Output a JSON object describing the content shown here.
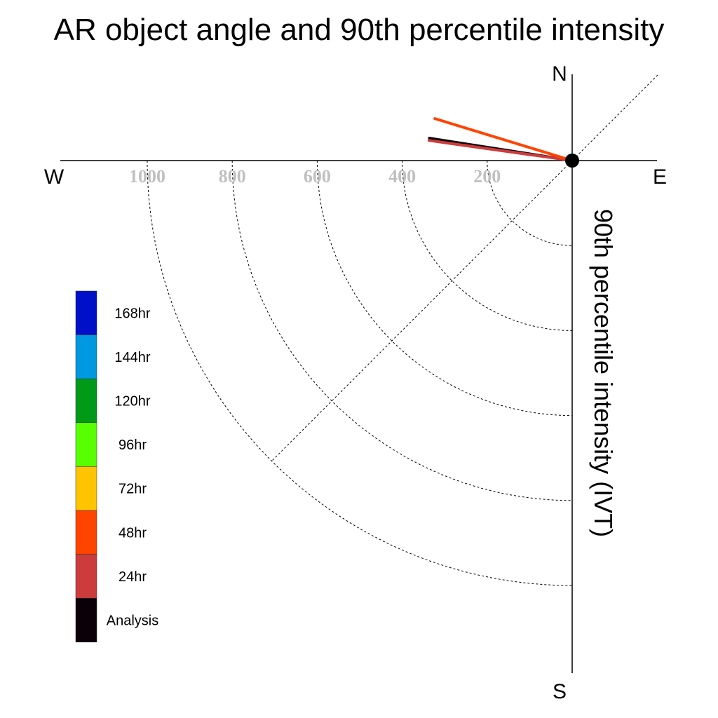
{
  "chart_data": {
    "type": "line",
    "title": "AR object angle and 90th percentile intensity",
    "ylabel": "90th percentile intensity (IVT)",
    "compass": {
      "north": "N",
      "south": "S",
      "east": "E",
      "west": "W"
    },
    "radial_ticks": [
      200,
      400,
      600,
      800,
      1000
    ],
    "radial_tick_labels": [
      "200",
      "400",
      "600",
      "800",
      "1000"
    ],
    "rlim": [
      0,
      1200
    ],
    "grid": true,
    "legend_position": "left",
    "legend": [
      {
        "label": "168hr",
        "color": "#0010c8"
      },
      {
        "label": "144hr",
        "color": "#0098e0"
      },
      {
        "label": "120hr",
        "color": "#009a18"
      },
      {
        "label": "96hr",
        "color": "#58ff00"
      },
      {
        "label": "72hr",
        "color": "#ffc400"
      },
      {
        "label": "48hr",
        "color": "#ff4400"
      },
      {
        "label": "24hr",
        "color": "#cc3c3c"
      },
      {
        "label": "Analysis",
        "color": "#0c0008"
      }
    ],
    "series": [
      {
        "name": "Analysis",
        "color": "#0c0008",
        "intensity": 340,
        "angle_deg_from_west_toward_north": 8.9
      },
      {
        "name": "24hr",
        "color": "#cc3c3c",
        "intensity": 340,
        "angle_deg_from_west_toward_north": 8.0
      },
      {
        "name": "48hr",
        "color": "#ff4400",
        "intensity": 338,
        "angle_deg_from_west_toward_north": 17.0
      }
    ]
  }
}
